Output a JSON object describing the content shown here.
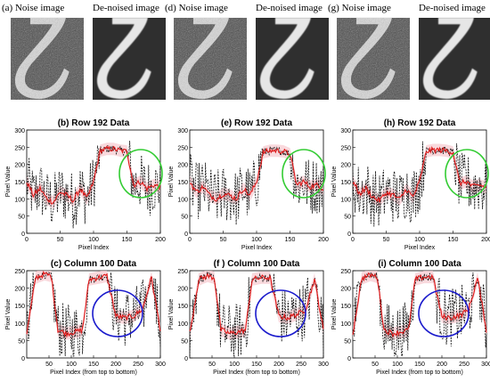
{
  "columns": [
    {
      "image_labels": {
        "noise": "(a) Noise image",
        "denoised": "De-noised image"
      },
      "row_title": "(b) Row 192 Data",
      "col_title": "(c) Column 100 Data",
      "circle_color_row": "#33cc33",
      "circle_color_col": "#1a1acc"
    },
    {
      "image_labels": {
        "noise": "(d) Noise image",
        "denoised": "De-noised image"
      },
      "row_title": "(e) Row 192 Data",
      "col_title": "(f ) Column 100 Data",
      "circle_color_row": "#33cc33",
      "circle_color_col": "#1a1acc"
    },
    {
      "image_labels": {
        "noise": "(g) Noise image",
        "denoised": "De-noised image"
      },
      "row_title": "(h) Row 192 Data",
      "col_title": "(i) Column 100 Data",
      "circle_color_row": "#33cc33",
      "circle_color_col": "#1a1acc"
    }
  ],
  "row_axis": {
    "xlabel": "Pixel Index",
    "ylabel": "Pixel Value",
    "xticks": [
      "0",
      "50",
      "100",
      "150",
      "200"
    ],
    "yticks": [
      "0",
      "50",
      "100",
      "150",
      "200",
      "250",
      "300"
    ]
  },
  "col_axis": {
    "xlabel": "Pixel Index (from top to bottom)",
    "ylabel": "Pixel Value",
    "xticks": [
      "50",
      "100",
      "150",
      "200",
      "250",
      "300"
    ],
    "yticks": [
      "0",
      "50",
      "100",
      "150",
      "200",
      "250"
    ]
  },
  "chart_data": [
    {
      "type": "line",
      "title": "(b) Row 192 Data",
      "xlabel": "Pixel Index",
      "ylabel": "Pixel Value",
      "xlim": [
        0,
        200
      ],
      "ylim": [
        0,
        300
      ],
      "series": [
        {
          "values": [
            150,
            110,
            130,
            100,
            90,
            120,
            110,
            95,
            130,
            100,
            150,
            240,
            245,
            245,
            240,
            238,
            140,
            150,
            130,
            140,
            135
          ]
        }
      ],
      "x": [
        0,
        10,
        20,
        30,
        40,
        50,
        60,
        70,
        80,
        90,
        100,
        110,
        120,
        130,
        140,
        150,
        160,
        170,
        180,
        190,
        200
      ]
    },
    {
      "type": "line",
      "title": "(e) Row 192 Data",
      "xlabel": "Pixel Index",
      "ylabel": "Pixel Value",
      "xlim": [
        0,
        200
      ],
      "ylim": [
        0,
        300
      ],
      "series": [
        {
          "values": [
            150,
            120,
            135,
            110,
            100,
            115,
            110,
            100,
            130,
            110,
            150,
            235,
            240,
            240,
            238,
            230,
            140,
            150,
            135,
            140,
            130
          ]
        }
      ],
      "x": [
        0,
        10,
        20,
        30,
        40,
        50,
        60,
        70,
        80,
        90,
        100,
        110,
        120,
        130,
        140,
        150,
        160,
        170,
        180,
        190,
        200
      ]
    },
    {
      "type": "line",
      "title": "(h) Row 192 Data",
      "xlabel": "Pixel Index",
      "ylabel": "Pixel Value",
      "xlim": [
        0,
        200
      ],
      "ylim": [
        0,
        300
      ],
      "series": [
        {
          "values": [
            150,
            115,
            130,
            105,
            95,
            118,
            112,
            98,
            128,
            105,
            150,
            238,
            242,
            242,
            240,
            235,
            145,
            150,
            135,
            140,
            132
          ]
        }
      ],
      "x": [
        0,
        10,
        20,
        30,
        40,
        50,
        60,
        70,
        80,
        90,
        100,
        110,
        120,
        130,
        140,
        150,
        160,
        170,
        180,
        190,
        200
      ]
    },
    {
      "type": "line",
      "title": "(c) Column 100 Data",
      "xlabel": "Pixel Index (from top to bottom)",
      "ylabel": "Pixel Value",
      "xlim": [
        0,
        300
      ],
      "ylim": [
        0,
        250
      ],
      "series": [
        {
          "values": [
            70,
            230,
            240,
            235,
            80,
            70,
            75,
            80,
            225,
            230,
            235,
            120,
            115,
            120,
            130,
            140,
            230,
            80
          ]
        }
      ],
      "x": [
        0,
        20,
        40,
        55,
        70,
        90,
        110,
        125,
        140,
        160,
        180,
        200,
        220,
        240,
        250,
        260,
        280,
        300
      ]
    },
    {
      "type": "line",
      "title": "(f ) Column 100 Data",
      "xlabel": "Pixel Index (from top to bottom)",
      "ylabel": "Pixel Value",
      "xlim": [
        0,
        300
      ],
      "ylim": [
        0,
        250
      ],
      "series": [
        {
          "values": [
            70,
            225,
            235,
            230,
            80,
            70,
            75,
            80,
            225,
            230,
            230,
            120,
            115,
            125,
            130,
            140,
            225,
            80
          ]
        }
      ],
      "x": [
        0,
        20,
        40,
        55,
        70,
        90,
        110,
        125,
        140,
        160,
        180,
        200,
        220,
        240,
        250,
        260,
        280,
        300
      ]
    },
    {
      "type": "line",
      "title": "(i) Column 100 Data",
      "xlabel": "Pixel Index (from top to bottom)",
      "ylabel": "Pixel Value",
      "xlim": [
        0,
        300
      ],
      "ylim": [
        0,
        250
      ],
      "series": [
        {
          "values": [
            70,
            228,
            238,
            232,
            80,
            70,
            75,
            80,
            225,
            232,
            232,
            118,
            115,
            122,
            130,
            138,
            228,
            80
          ]
        }
      ],
      "x": [
        0,
        20,
        40,
        55,
        70,
        90,
        110,
        125,
        140,
        160,
        180,
        200,
        220,
        240,
        250,
        260,
        280,
        300
      ]
    }
  ]
}
